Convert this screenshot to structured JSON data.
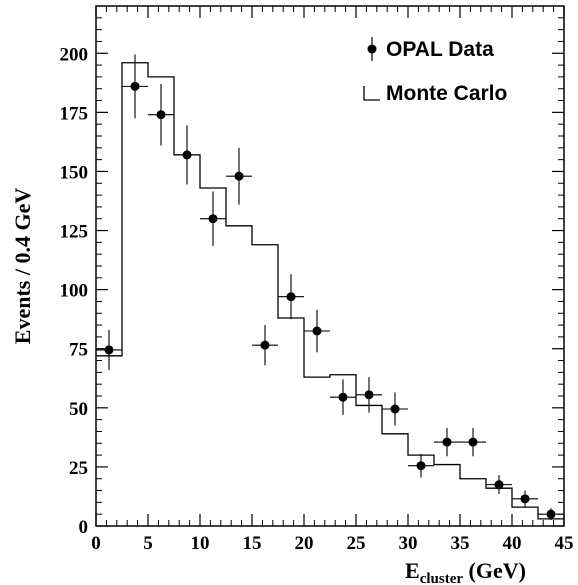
{
  "chart_data": {
    "type": "line",
    "x_axis": {
      "label_main": "E",
      "label_sub": "cluster",
      "label_unit": " (GeV)",
      "range": [
        0,
        45
      ],
      "ticks": [
        0,
        5,
        10,
        15,
        20,
        25,
        30,
        35,
        40,
        45
      ]
    },
    "y_axis": {
      "label": "Events / 0.4 GeV",
      "range": [
        0,
        220
      ],
      "ticks": [
        0,
        25,
        50,
        75,
        100,
        125,
        150,
        175,
        200
      ]
    },
    "legend": {
      "placement": "top-right",
      "entries": [
        "OPAL Data",
        "Monte Carlo"
      ]
    },
    "series": [
      {
        "name": "OPAL Data",
        "kind": "points-with-errors",
        "points": [
          {
            "x": 1.25,
            "y": 74.5,
            "xerr": 1.25,
            "yerr": 8.5
          },
          {
            "x": 3.75,
            "y": 186,
            "xerr": 1.25,
            "yerr": 13.5
          },
          {
            "x": 6.25,
            "y": 174,
            "xerr": 1.25,
            "yerr": 13
          },
          {
            "x": 8.75,
            "y": 157,
            "xerr": 1.25,
            "yerr": 12.5
          },
          {
            "x": 11.25,
            "y": 130,
            "xerr": 1.25,
            "yerr": 11.5
          },
          {
            "x": 13.75,
            "y": 148,
            "xerr": 1.25,
            "yerr": 12
          },
          {
            "x": 16.25,
            "y": 76.5,
            "xerr": 1.25,
            "yerr": 8.5
          },
          {
            "x": 18.75,
            "y": 97,
            "xerr": 1.25,
            "yerr": 9.5
          },
          {
            "x": 21.25,
            "y": 82.5,
            "xerr": 1.25,
            "yerr": 9
          },
          {
            "x": 23.75,
            "y": 54.5,
            "xerr": 1.25,
            "yerr": 7.5
          },
          {
            "x": 26.25,
            "y": 55.5,
            "xerr": 1.25,
            "yerr": 7.5
          },
          {
            "x": 28.75,
            "y": 49.5,
            "xerr": 1.25,
            "yerr": 7
          },
          {
            "x": 31.25,
            "y": 25.5,
            "xerr": 1.25,
            "yerr": 5
          },
          {
            "x": 33.75,
            "y": 35.5,
            "xerr": 1.25,
            "yerr": 6
          },
          {
            "x": 36.25,
            "y": 35.5,
            "xerr": 1.25,
            "yerr": 6
          },
          {
            "x": 38.75,
            "y": 17.5,
            "xerr": 1.25,
            "yerr": 4
          },
          {
            "x": 41.25,
            "y": 11.5,
            "xerr": 1.25,
            "yerr": 3.5
          },
          {
            "x": 43.75,
            "y": 5,
            "xerr": 1.25,
            "yerr": 2.5
          }
        ]
      },
      {
        "name": "Monte Carlo",
        "kind": "step-histogram",
        "bin_edges": [
          0,
          2.5,
          5,
          7.5,
          10,
          12.5,
          15,
          17.5,
          20,
          22.5,
          25,
          27.5,
          30,
          32.5,
          35,
          37.5,
          40,
          42.5,
          45
        ],
        "values": [
          72,
          196,
          190,
          157,
          143,
          127,
          119,
          88,
          63,
          64,
          51,
          39,
          30,
          26,
          20,
          16,
          8,
          3
        ]
      }
    ]
  }
}
